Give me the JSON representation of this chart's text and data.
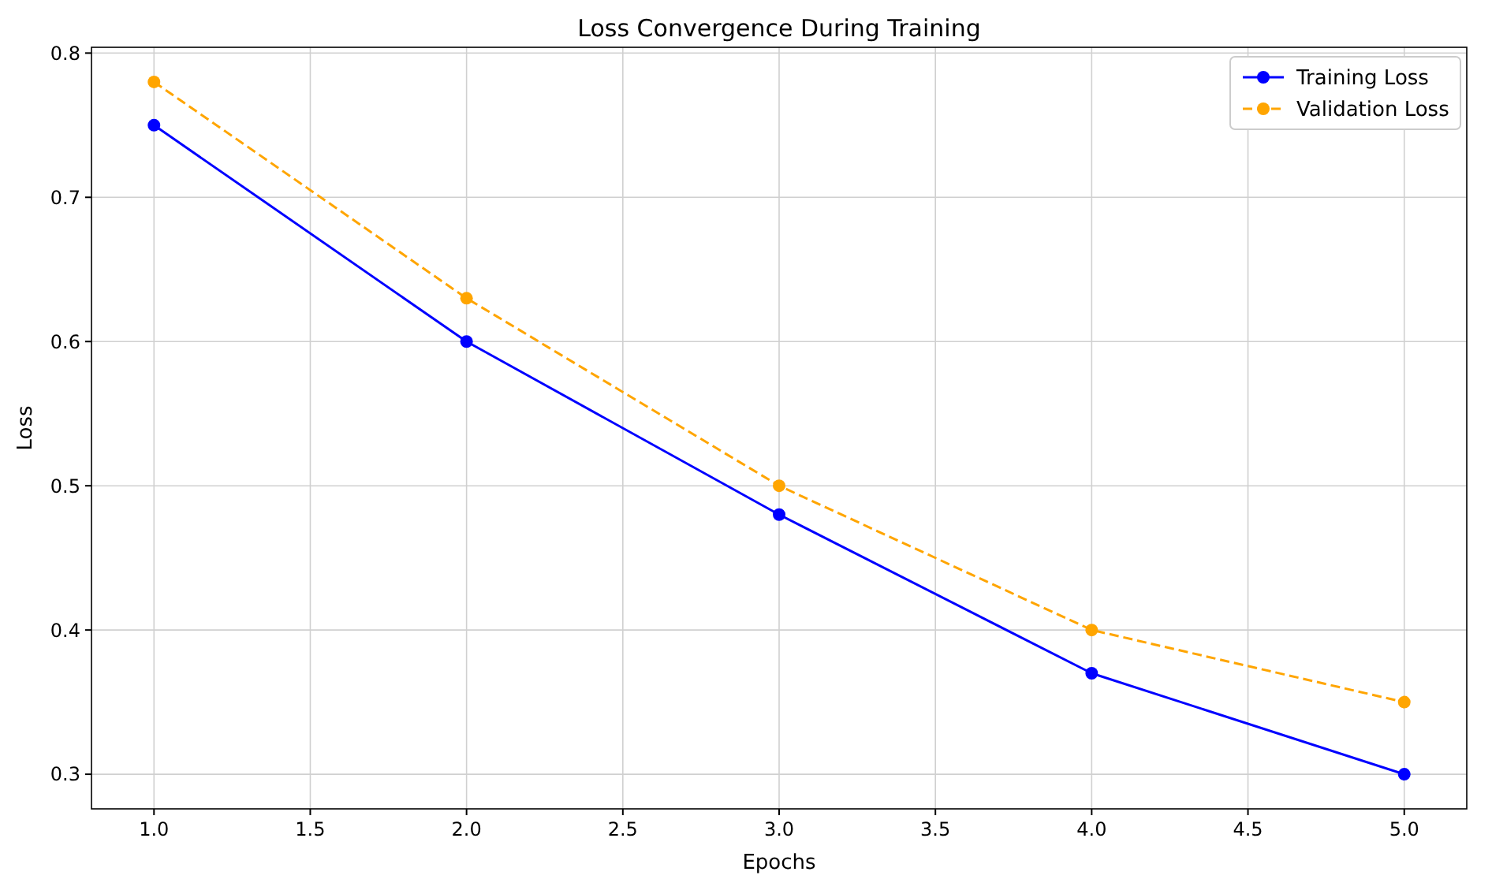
{
  "chart_data": {
    "type": "line",
    "title": "Loss Convergence During Training",
    "xlabel": "Epochs",
    "ylabel": "Loss",
    "x": [
      1,
      2,
      3,
      4,
      5
    ],
    "series": [
      {
        "name": "Training Loss",
        "color": "#0000ff",
        "values": [
          0.75,
          0.6,
          0.48,
          0.37,
          0.3
        ],
        "line_style": "solid"
      },
      {
        "name": "Validation Loss",
        "color": "#ffa500",
        "values": [
          0.78,
          0.63,
          0.5,
          0.4,
          0.35
        ],
        "line_style": "dashed"
      }
    ],
    "xlim": [
      0.8,
      5.2
    ],
    "xticks": [
      {
        "value": 1,
        "label": "1.0"
      },
      {
        "value": 1.5,
        "label": "1.5"
      },
      {
        "value": 2,
        "label": "2.0"
      },
      {
        "value": 2.5,
        "label": "2.5"
      },
      {
        "value": 3,
        "label": "3.0"
      },
      {
        "value": 3.5,
        "label": "3.5"
      },
      {
        "value": 4,
        "label": "4.0"
      },
      {
        "value": 4.5,
        "label": "4.5"
      },
      {
        "value": 5,
        "label": "5.0"
      }
    ],
    "ylim": [
      0.276,
      0.804
    ],
    "yticks": [
      0.3,
      0.4,
      0.5,
      0.6,
      0.7,
      0.8
    ],
    "grid": true,
    "legend": "top right",
    "marker": "circle"
  }
}
